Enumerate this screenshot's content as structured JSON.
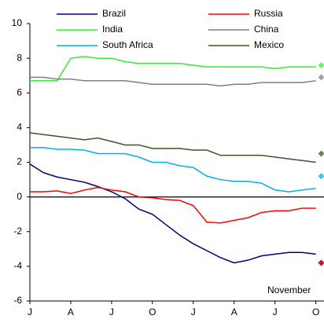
{
  "chart_data": {
    "type": "line",
    "x": [
      0,
      1,
      2,
      3,
      4,
      5,
      6,
      7,
      8,
      9,
      10,
      11,
      12,
      13,
      14,
      15,
      16,
      17,
      18,
      19,
      20,
      21
    ],
    "xlim": [
      0,
      21.6
    ],
    "xticks": [
      {
        "value": 0,
        "label": "J"
      },
      {
        "value": 3,
        "label": "A"
      },
      {
        "value": 6,
        "label": "J"
      },
      {
        "value": 9,
        "label": "O"
      },
      {
        "value": 12,
        "label": "J"
      },
      {
        "value": 15,
        "label": "A"
      },
      {
        "value": 18,
        "label": "J"
      },
      {
        "value": 21,
        "label": "O"
      }
    ],
    "ylim": [
      -6,
      10
    ],
    "yticks": [
      -6,
      -4,
      -2,
      0,
      2,
      4,
      6,
      8,
      10
    ],
    "annotation": "November",
    "marker_x": 21.4,
    "series": [
      {
        "name": "Brazil",
        "color": "#000080",
        "marker": -3.8,
        "values": [
          1.9,
          1.4,
          1.15,
          1.0,
          0.85,
          0.6,
          0.3,
          -0.1,
          -0.7,
          -1.0,
          -1.6,
          -2.2,
          -2.7,
          -3.1,
          -3.5,
          -3.8,
          -3.65,
          -3.4,
          -3.3,
          -3.2,
          -3.2,
          -3.3
        ]
      },
      {
        "name": "Russia",
        "color": "#ff0000",
        "marker": -3.8,
        "values": [
          0.3,
          0.3,
          0.35,
          0.2,
          0.4,
          0.55,
          0.4,
          0.3,
          0.0,
          -0.05,
          -0.15,
          -0.2,
          -0.5,
          -1.45,
          -1.5,
          -1.35,
          -1.2,
          -0.9,
          -0.8,
          -0.8,
          -0.65,
          -0.65
        ]
      },
      {
        "name": "India",
        "color": "#33ee33",
        "marker": 7.6,
        "values": [
          6.7,
          6.7,
          6.7,
          8.0,
          8.1,
          8.0,
          8.0,
          7.8,
          7.7,
          7.7,
          7.7,
          7.7,
          7.6,
          7.5,
          7.5,
          7.5,
          7.5,
          7.5,
          7.4,
          7.5,
          7.5,
          7.5
        ]
      },
      {
        "name": "China",
        "color": "#808080",
        "marker": 6.9,
        "values": [
          6.9,
          6.9,
          6.8,
          6.8,
          6.7,
          6.7,
          6.7,
          6.7,
          6.6,
          6.5,
          6.5,
          6.5,
          6.5,
          6.5,
          6.4,
          6.5,
          6.5,
          6.6,
          6.6,
          6.6,
          6.6,
          6.7
        ]
      },
      {
        "name": "South Africa",
        "color": "#00b0f0",
        "marker": 1.2,
        "values": [
          2.85,
          2.85,
          2.75,
          2.75,
          2.7,
          2.5,
          2.5,
          2.5,
          2.3,
          2.0,
          2.0,
          1.8,
          1.7,
          1.2,
          1.0,
          0.9,
          0.9,
          0.8,
          0.4,
          0.3,
          0.4,
          0.5
        ]
      },
      {
        "name": "Mexico",
        "color": "#385723",
        "marker": 2.5,
        "values": [
          3.7,
          3.6,
          3.5,
          3.4,
          3.3,
          3.4,
          3.2,
          3.0,
          3.0,
          2.8,
          2.8,
          2.8,
          2.7,
          2.7,
          2.4,
          2.4,
          2.4,
          2.4,
          2.3,
          2.2,
          2.1,
          2.0
        ]
      }
    ]
  }
}
